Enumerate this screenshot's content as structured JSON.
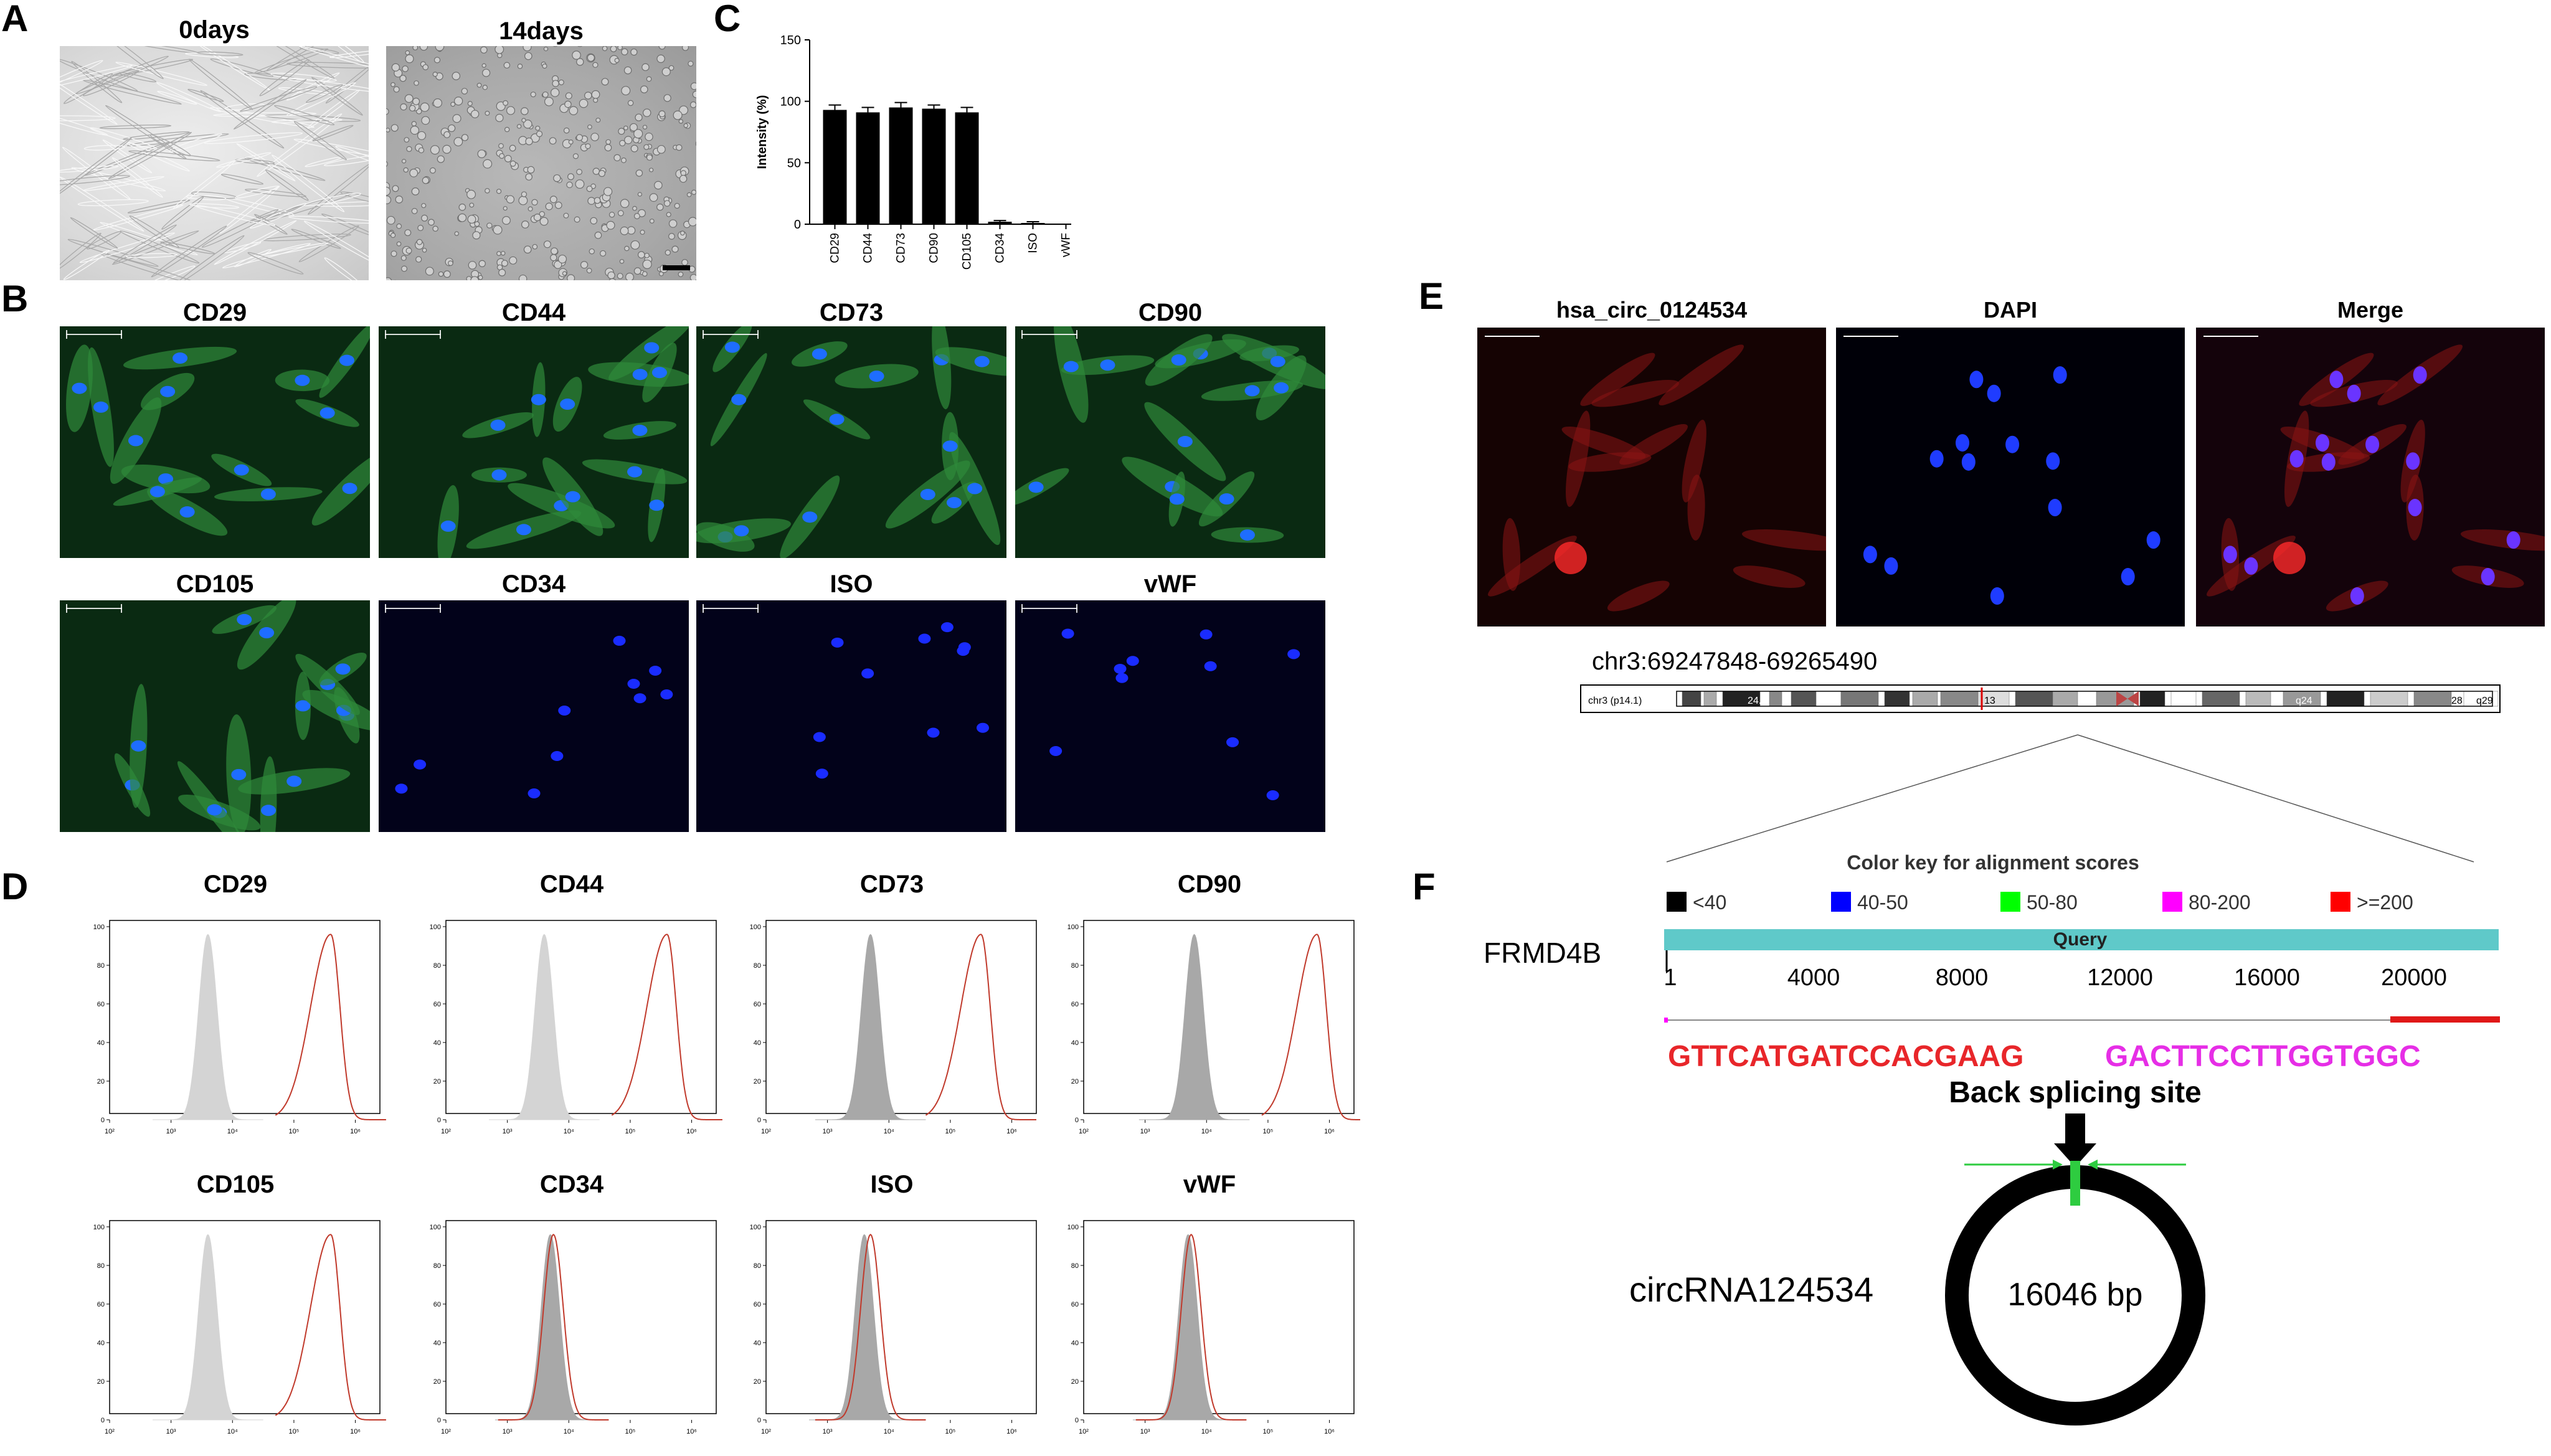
{
  "panels": {
    "A": {
      "letter": "A",
      "images": [
        {
          "title": "0days",
          "kind": "phase-contrast-spindle"
        },
        {
          "title": "14days",
          "kind": "phase-contrast-round"
        }
      ]
    },
    "B": {
      "letter": "B",
      "images": [
        {
          "title": "CD29",
          "stain": "green-blue"
        },
        {
          "title": "CD44",
          "stain": "green-blue"
        },
        {
          "title": "CD73",
          "stain": "green-blue"
        },
        {
          "title": "CD90",
          "stain": "green-blue"
        },
        {
          "title": "CD105",
          "stain": "green-blue"
        },
        {
          "title": "CD34",
          "stain": "blue-only"
        },
        {
          "title": "ISO",
          "stain": "blue-only"
        },
        {
          "title": "vWF",
          "stain": "blue-only"
        }
      ]
    },
    "C": {
      "letter": "C"
    },
    "D": {
      "letter": "D",
      "histograms": [
        {
          "title": "CD29",
          "control_peak_log": 3.6,
          "sample_peak_log": 5.6,
          "control_color": "#d4d4d4",
          "overlap": false
        },
        {
          "title": "CD44",
          "control_peak_log": 3.6,
          "sample_peak_log": 5.6,
          "control_color": "#d4d4d4",
          "overlap": false
        },
        {
          "title": "CD73",
          "control_peak_log": 3.7,
          "sample_peak_log": 5.5,
          "control_color": "#a8a8a8",
          "overlap": false
        },
        {
          "title": "CD90",
          "control_peak_log": 3.8,
          "sample_peak_log": 5.8,
          "control_color": "#a8a8a8",
          "overlap": false
        },
        {
          "title": "CD105",
          "control_peak_log": 3.6,
          "sample_peak_log": 5.6,
          "control_color": "#d4d4d4",
          "overlap": false
        },
        {
          "title": "CD34",
          "control_peak_log": 3.7,
          "sample_peak_log": 3.75,
          "control_color": "#a8a8a8",
          "overlap": true
        },
        {
          "title": "ISO",
          "control_peak_log": 3.6,
          "sample_peak_log": 3.7,
          "control_color": "#a8a8a8",
          "overlap": true
        },
        {
          "title": "vWF",
          "control_peak_log": 3.7,
          "sample_peak_log": 3.75,
          "control_color": "#a8a8a8",
          "overlap": true
        }
      ],
      "y_ticks": [
        "0",
        "20",
        "40",
        "60",
        "80",
        "100"
      ],
      "x_ticks": [
        "10²",
        "10³",
        "10⁴",
        "10⁵",
        "10⁶"
      ],
      "sample_color": "#c0392b"
    },
    "E": {
      "letter": "E",
      "images": [
        {
          "title": "hsa_circ_0124534",
          "stain": "red"
        },
        {
          "title": "DAPI",
          "stain": "blue"
        },
        {
          "title": "Merge",
          "stain": "merge"
        }
      ],
      "coordinates": "chr3:69247848-69265490",
      "ideogram_label": "chr3 (p14.1)",
      "band_labels": [
        "24.3",
        "13",
        "23",
        "q24",
        "28",
        "q29"
      ]
    },
    "F": {
      "letter": "F",
      "color_key_title": "Color key for alignment scores",
      "color_key": [
        {
          "label": "<40",
          "color": "#000000"
        },
        {
          "label": "40-50",
          "color": "#0000ff"
        },
        {
          "label": "50-80",
          "color": "#00ff00"
        },
        {
          "label": "80-200",
          "color": "#ff00ff"
        },
        {
          "label": ">=200",
          "color": "#ff0000"
        }
      ],
      "query_label": "Query",
      "query_color": "#5fc9c9",
      "gene": "FRMD4B",
      "axis_ticks": [
        "1",
        "4000",
        "8000",
        "12000",
        "16000",
        "20000"
      ],
      "seq_left": "GTTCATGATCCACGAAG",
      "seq_right": "GACTTCCTTGGTGGC",
      "seq_left_color": "#e8262a",
      "seq_right_color": "#e62ee6",
      "back_splicing_label": "Back splicing site",
      "circ_name": "circRNA124534",
      "circ_length": "16046 bp"
    }
  },
  "chart_data": {
    "type": "bar",
    "title": "",
    "xlabel": "",
    "ylabel": "Intensity (%)",
    "ylim": [
      0,
      150
    ],
    "yticks": [
      0,
      50,
      100,
      150
    ],
    "categories": [
      "CD29",
      "CD44",
      "CD73",
      "CD90",
      "CD105",
      "CD34",
      "ISO",
      "vWF"
    ],
    "values": [
      93,
      91,
      95,
      94,
      91,
      2,
      1,
      0
    ],
    "errors": [
      4,
      4,
      4,
      3,
      4,
      1,
      1,
      0
    ],
    "bar_color": "#000000",
    "grid": false
  }
}
